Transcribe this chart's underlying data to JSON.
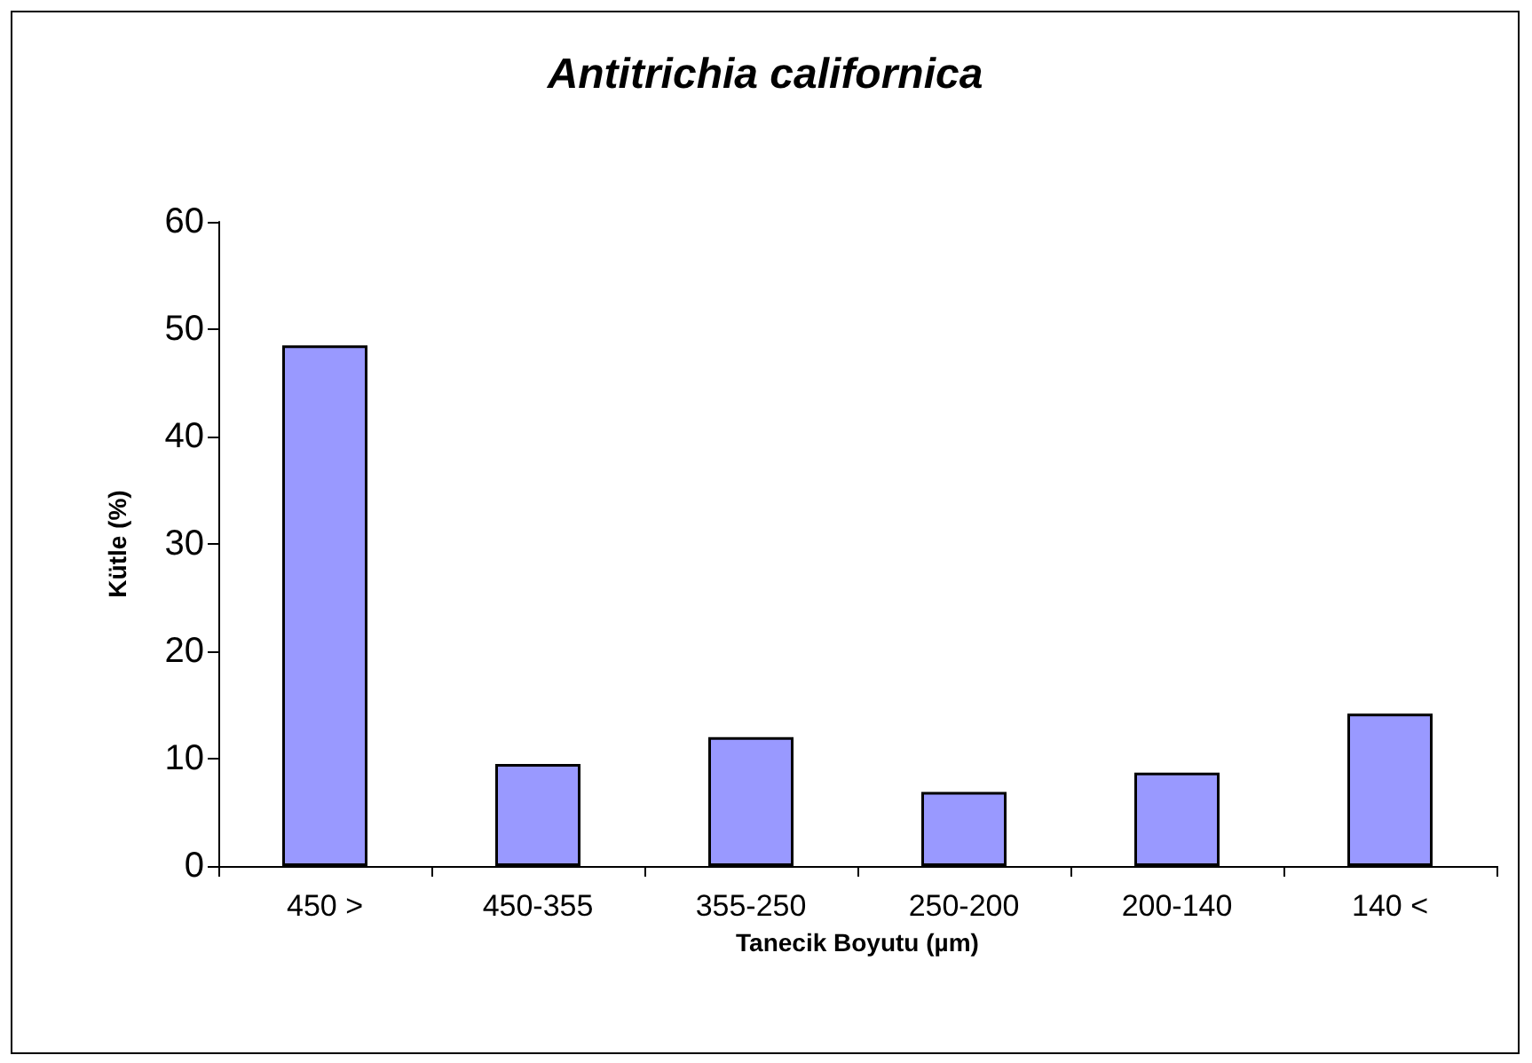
{
  "chart_data": {
    "type": "bar",
    "title": "Antitrichia californica",
    "xlabel": "Tanecik Boyutu (µm)",
    "ylabel": "Kütle (%)",
    "categories": [
      "450 >",
      "450-355",
      "355-250",
      "250-200",
      "200-140",
      "140 <"
    ],
    "values": [
      48.5,
      9.5,
      12.0,
      6.9,
      8.7,
      14.2
    ],
    "color": "#9999ff",
    "ylim": [
      0,
      60
    ],
    "yticks": [
      0,
      10,
      20,
      30,
      40,
      50,
      60
    ]
  }
}
